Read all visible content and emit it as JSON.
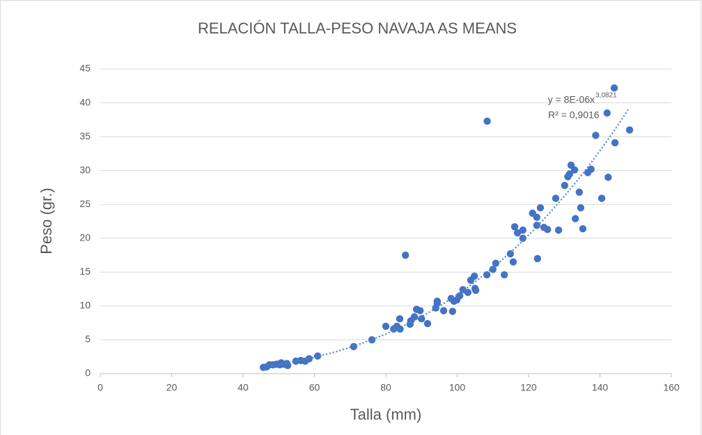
{
  "chart_data": {
    "type": "scatter",
    "title": "RELACIÓN TALLA-PESO NAVAJA AS MEANS",
    "x_label": "Talla (mm)",
    "y_label": "Peso (gr.)",
    "color": "#4472c4",
    "grid": true,
    "xlim": [
      0,
      160
    ],
    "xticks": [
      0,
      20,
      40,
      60,
      80,
      100,
      120,
      140,
      160
    ],
    "ylim": [
      0,
      45
    ],
    "yticks": [
      0,
      5,
      10,
      15,
      20,
      25,
      30,
      35,
      40,
      45
    ],
    "x": [
      45.7,
      46.6,
      47.4,
      48.4,
      49.4,
      50,
      50.7,
      50.3,
      51.5,
      52.3,
      52.5,
      54.8,
      56.2,
      57.4,
      58.5,
      60.9,
      71,
      76.1,
      80,
      82.2,
      83.1,
      84,
      83.9,
      85.5,
      86.8,
      87,
      88,
      88.6,
      89.6,
      90,
      91.7,
      94,
      94.4,
      94.4,
      96.2,
      98.7,
      98.3,
      99.1,
      99.9,
      100.7,
      101.6,
      103,
      103.8,
      104.8,
      105,
      105.2,
      108.4,
      108.3,
      110,
      110.8,
      113.2,
      114.9,
      115.7,
      116.1,
      116.9,
      118.4,
      118.4,
      121.1,
      122.3,
      122.3,
      122.5,
      123.3,
      124.3,
      125.3,
      127.6,
      128.4,
      130.1,
      131,
      131.9,
      131.5,
      132.9,
      133.1,
      134.2,
      134.6,
      135.2,
      136.6,
      137.5,
      138.8,
      140.5,
      142,
      142.3,
      144,
      144.2,
      148.3
    ],
    "values": [
      0.93,
      1.0,
      1.3,
      1.3,
      1.4,
      1.4,
      1.6,
      1.3,
      1.4,
      1.5,
      1.2,
      1.85,
      1.95,
      1.85,
      2.2,
      2.6,
      4.0,
      5.0,
      7.0,
      6.6,
      7.0,
      6.6,
      8.1,
      17.5,
      7.3,
      7.8,
      8.4,
      9.5,
      9.3,
      8.1,
      7.4,
      9.7,
      10.7,
      10.4,
      9.3,
      9.2,
      11.1,
      10.7,
      10.9,
      11.5,
      12.4,
      12.0,
      13.8,
      14.4,
      12.6,
      12.3,
      37.3,
      14.6,
      15.4,
      16.3,
      14.6,
      17.7,
      16.5,
      21.7,
      20.8,
      21.2,
      20.0,
      23.7,
      23.1,
      21.9,
      17.0,
      24.5,
      21.6,
      21.3,
      25.9,
      21.2,
      27.8,
      29.1,
      30.8,
      29.5,
      30.1,
      22.9,
      26.8,
      24.5,
      21.4,
      29.7,
      30.2,
      35.2,
      25.9,
      38.5,
      29.0,
      42.2,
      34.1,
      36.0
    ],
    "trendline": {
      "coefficient": 8e-06,
      "exponent": 3.0821,
      "x_start": 46,
      "x_end": 148,
      "color": "#4a86c5",
      "equation": "y = 8E-06x",
      "equation_exponent": "3,0821",
      "r_squared": "R² = 0,9016"
    }
  }
}
